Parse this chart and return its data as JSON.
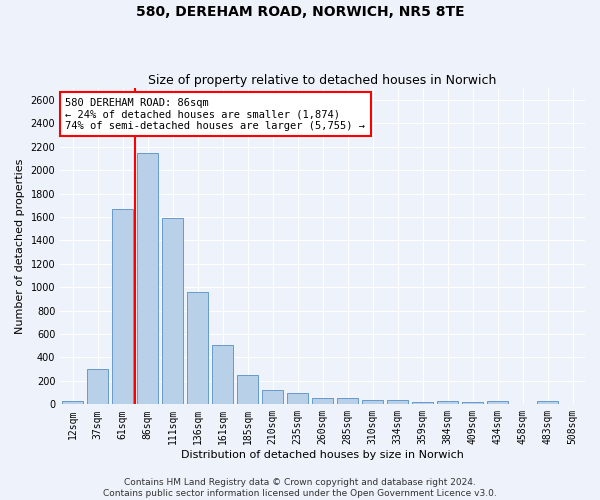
{
  "title": "580, DEREHAM ROAD, NORWICH, NR5 8TE",
  "subtitle": "Size of property relative to detached houses in Norwich",
  "xlabel": "Distribution of detached houses by size in Norwich",
  "ylabel": "Number of detached properties",
  "categories": [
    "12sqm",
    "37sqm",
    "61sqm",
    "86sqm",
    "111sqm",
    "136sqm",
    "161sqm",
    "185sqm",
    "210sqm",
    "235sqm",
    "260sqm",
    "285sqm",
    "310sqm",
    "334sqm",
    "359sqm",
    "384sqm",
    "409sqm",
    "434sqm",
    "458sqm",
    "483sqm",
    "508sqm"
  ],
  "values": [
    25,
    300,
    1670,
    2150,
    1595,
    960,
    505,
    250,
    120,
    100,
    50,
    50,
    35,
    35,
    20,
    30,
    20,
    25,
    5,
    25,
    5
  ],
  "bar_color": "#b8d0e8",
  "bar_edge_color": "#6699cc",
  "red_line_index": 3,
  "annotation_text": "580 DEREHAM ROAD: 86sqm\n← 24% of detached houses are smaller (1,874)\n74% of semi-detached houses are larger (5,755) →",
  "annotation_box_color": "white",
  "annotation_box_edge": "red",
  "ylim": [
    0,
    2700
  ],
  "yticks": [
    0,
    200,
    400,
    600,
    800,
    1000,
    1200,
    1400,
    1600,
    1800,
    2000,
    2200,
    2400,
    2600
  ],
  "footer1": "Contains HM Land Registry data © Crown copyright and database right 2024.",
  "footer2": "Contains public sector information licensed under the Open Government Licence v3.0.",
  "bg_color": "#eef2fa",
  "grid_color": "white",
  "title_fontsize": 10,
  "subtitle_fontsize": 9,
  "axis_label_fontsize": 8,
  "tick_fontsize": 7,
  "annotation_fontsize": 7.5,
  "footer_fontsize": 6.5
}
